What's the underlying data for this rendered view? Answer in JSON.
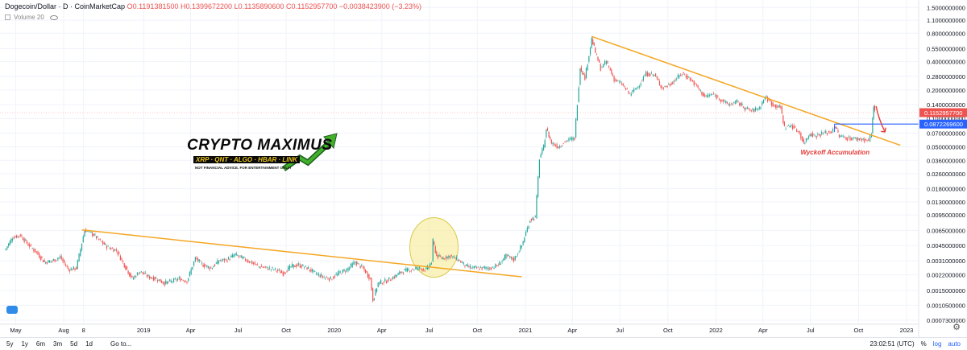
{
  "header": {
    "symbol": "Dogecoin/Dollar · D · CoinMarketCap",
    "open": "O0.1191381500",
    "high": "H0.1399672200",
    "low": "L0.1135890600",
    "close": "C0.1152957700",
    "change": "−0.0038423900 (−3.23%)",
    "volume_label": "Volume 20"
  },
  "logo": {
    "title": "CRYPTO MAXIMUS",
    "subtitle": "XRP · QNT · ALGO · HBAR · LINK",
    "note": "NOT FINANCIAL ADVICE. FOR ENTERTAINMENT ONLY!"
  },
  "annotation": "Wyckoff Accumulation",
  "bottombar": {
    "ranges": [
      "5y",
      "1y",
      "6m",
      "3m",
      "5d",
      "1d"
    ],
    "goto": "Go to...",
    "time": "23:02:51 (UTC)",
    "percent": "%",
    "log": "log",
    "auto": "auto"
  },
  "colors": {
    "up": "#26a69a",
    "down": "#ef5350",
    "trendline": "#f5a623",
    "price_label": "#ef5350",
    "level_label": "#2962ff",
    "annotation": "#e53935",
    "highlight": "#f6ea8c"
  },
  "chart_data": {
    "type": "line",
    "title": "Dogecoin/Dollar",
    "scale": "log",
    "x_ticks": [
      "May",
      "Aug",
      "8",
      "2019",
      "Apr",
      "Jul",
      "Oct",
      "2020",
      "Apr",
      "Jul",
      "Oct",
      "2021",
      "Apr",
      "Jul",
      "Oct",
      "2022",
      "Apr",
      "Jul",
      "Oct",
      "2023"
    ],
    "y_ticks": [
      "1.5000000000",
      "1.1000000000",
      "0.8000000000",
      "0.5500000000",
      "0.4000000000",
      "0.2800000000",
      "0.2000000000",
      "0.1400000000",
      "0.1000000000",
      "0.0700000000",
      "0.0500000000",
      "0.0360000000",
      "0.0260000000",
      "0.0180000000",
      "0.0130000000",
      "0.0095000000",
      "0.0065000000",
      "0.0045000000",
      "0.0031000000",
      "0.0022000000",
      "0.0015000000",
      "0.0010500000",
      "0.0007300000"
    ],
    "price_label": "0.1152957700",
    "level_label": "0.0872269600",
    "ylim": [
      0.0007,
      1.6
    ],
    "series": [
      {
        "name": "Dogecoin/Dollar",
        "points": [
          [
            "2018-04-10",
            0.004
          ],
          [
            "2018-04-25",
            0.0055
          ],
          [
            "2018-05-10",
            0.0058
          ],
          [
            "2018-05-25",
            0.0046
          ],
          [
            "2018-06-10",
            0.0038
          ],
          [
            "2018-06-25",
            0.003
          ],
          [
            "2018-07-10",
            0.0031
          ],
          [
            "2018-07-25",
            0.0034
          ],
          [
            "2018-08-10",
            0.0025
          ],
          [
            "2018-08-25",
            0.0026
          ],
          [
            "2018-09-10",
            0.0066
          ],
          [
            "2018-09-25",
            0.006
          ],
          [
            "2018-10-10",
            0.005
          ],
          [
            "2018-10-25",
            0.0043
          ],
          [
            "2018-11-10",
            0.004
          ],
          [
            "2018-11-25",
            0.0028
          ],
          [
            "2018-12-10",
            0.002
          ],
          [
            "2018-12-25",
            0.0024
          ],
          [
            "2019-01-10",
            0.0021
          ],
          [
            "2019-01-25",
            0.002
          ],
          [
            "2019-02-10",
            0.0018
          ],
          [
            "2019-02-25",
            0.0019
          ],
          [
            "2019-03-10",
            0.002
          ],
          [
            "2019-03-25",
            0.0019
          ],
          [
            "2019-04-10",
            0.0033
          ],
          [
            "2019-04-25",
            0.0028
          ],
          [
            "2019-05-10",
            0.0026
          ],
          [
            "2019-05-25",
            0.0031
          ],
          [
            "2019-06-10",
            0.0032
          ],
          [
            "2019-06-25",
            0.0036
          ],
          [
            "2019-07-10",
            0.0033
          ],
          [
            "2019-07-25",
            0.003
          ],
          [
            "2019-08-10",
            0.0027
          ],
          [
            "2019-08-25",
            0.0026
          ],
          [
            "2019-09-10",
            0.0025
          ],
          [
            "2019-09-25",
            0.0023
          ],
          [
            "2019-10-10",
            0.0027
          ],
          [
            "2019-10-25",
            0.0028
          ],
          [
            "2019-11-10",
            0.0026
          ],
          [
            "2019-11-25",
            0.0023
          ],
          [
            "2019-12-10",
            0.0021
          ],
          [
            "2019-12-25",
            0.002
          ],
          [
            "2020-01-10",
            0.0023
          ],
          [
            "2020-01-25",
            0.0025
          ],
          [
            "2020-02-10",
            0.003
          ],
          [
            "2020-02-25",
            0.0026
          ],
          [
            "2020-03-10",
            0.002
          ],
          [
            "2020-03-15",
            0.0012
          ],
          [
            "2020-03-25",
            0.0018
          ],
          [
            "2020-04-10",
            0.0019
          ],
          [
            "2020-04-25",
            0.0021
          ],
          [
            "2020-05-10",
            0.0024
          ],
          [
            "2020-05-25",
            0.0025
          ],
          [
            "2020-06-10",
            0.0026
          ],
          [
            "2020-06-25",
            0.0025
          ],
          [
            "2020-07-05",
            0.003
          ],
          [
            "2020-07-08",
            0.005
          ],
          [
            "2020-07-15",
            0.0035
          ],
          [
            "2020-07-25",
            0.0033
          ],
          [
            "2020-08-10",
            0.0035
          ],
          [
            "2020-08-25",
            0.0032
          ],
          [
            "2020-09-10",
            0.0027
          ],
          [
            "2020-09-25",
            0.0026
          ],
          [
            "2020-10-10",
            0.0026
          ],
          [
            "2020-10-25",
            0.0026
          ],
          [
            "2020-11-10",
            0.0028
          ],
          [
            "2020-11-25",
            0.0035
          ],
          [
            "2020-12-10",
            0.0032
          ],
          [
            "2020-12-25",
            0.0045
          ],
          [
            "2021-01-10",
            0.0085
          ],
          [
            "2021-01-20",
            0.009
          ],
          [
            "2021-01-28",
            0.038
          ],
          [
            "2021-02-05",
            0.05
          ],
          [
            "2021-02-10",
            0.078
          ],
          [
            "2021-02-20",
            0.055
          ],
          [
            "2021-03-05",
            0.05
          ],
          [
            "2021-03-20",
            0.058
          ],
          [
            "2021-04-05",
            0.062
          ],
          [
            "2021-04-16",
            0.35
          ],
          [
            "2021-04-25",
            0.27
          ],
          [
            "2021-05-08",
            0.7
          ],
          [
            "2021-05-15",
            0.5
          ],
          [
            "2021-05-25",
            0.34
          ],
          [
            "2021-06-05",
            0.4
          ],
          [
            "2021-06-20",
            0.26
          ],
          [
            "2021-07-05",
            0.23
          ],
          [
            "2021-07-20",
            0.18
          ],
          [
            "2021-08-05",
            0.22
          ],
          [
            "2021-08-20",
            0.3
          ],
          [
            "2021-09-05",
            0.29
          ],
          [
            "2021-09-20",
            0.21
          ],
          [
            "2021-10-05",
            0.23
          ],
          [
            "2021-10-28",
            0.3
          ],
          [
            "2021-11-10",
            0.27
          ],
          [
            "2021-11-25",
            0.22
          ],
          [
            "2021-12-10",
            0.17
          ],
          [
            "2021-12-25",
            0.18
          ],
          [
            "2022-01-10",
            0.16
          ],
          [
            "2022-01-25",
            0.14
          ],
          [
            "2022-02-10",
            0.15
          ],
          [
            "2022-02-25",
            0.13
          ],
          [
            "2022-03-10",
            0.12
          ],
          [
            "2022-03-25",
            0.13
          ],
          [
            "2022-04-05",
            0.17
          ],
          [
            "2022-04-20",
            0.14
          ],
          [
            "2022-05-05",
            0.13
          ],
          [
            "2022-05-12",
            0.08
          ],
          [
            "2022-05-25",
            0.085
          ],
          [
            "2022-06-10",
            0.07
          ],
          [
            "2022-06-18",
            0.054
          ],
          [
            "2022-06-30",
            0.07
          ],
          [
            "2022-07-10",
            0.065
          ],
          [
            "2022-07-25",
            0.07
          ],
          [
            "2022-08-10",
            0.072
          ],
          [
            "2022-08-16",
            0.085
          ],
          [
            "2022-08-25",
            0.065
          ],
          [
            "2022-09-10",
            0.062
          ],
          [
            "2022-09-25",
            0.061
          ],
          [
            "2022-10-10",
            0.06
          ],
          [
            "2022-10-20",
            0.058
          ],
          [
            "2022-10-26",
            0.07
          ],
          [
            "2022-10-30",
            0.14
          ],
          [
            "2022-11-01",
            0.1153
          ]
        ]
      }
    ],
    "annotations": [
      "Wyckoff Accumulation"
    ]
  }
}
